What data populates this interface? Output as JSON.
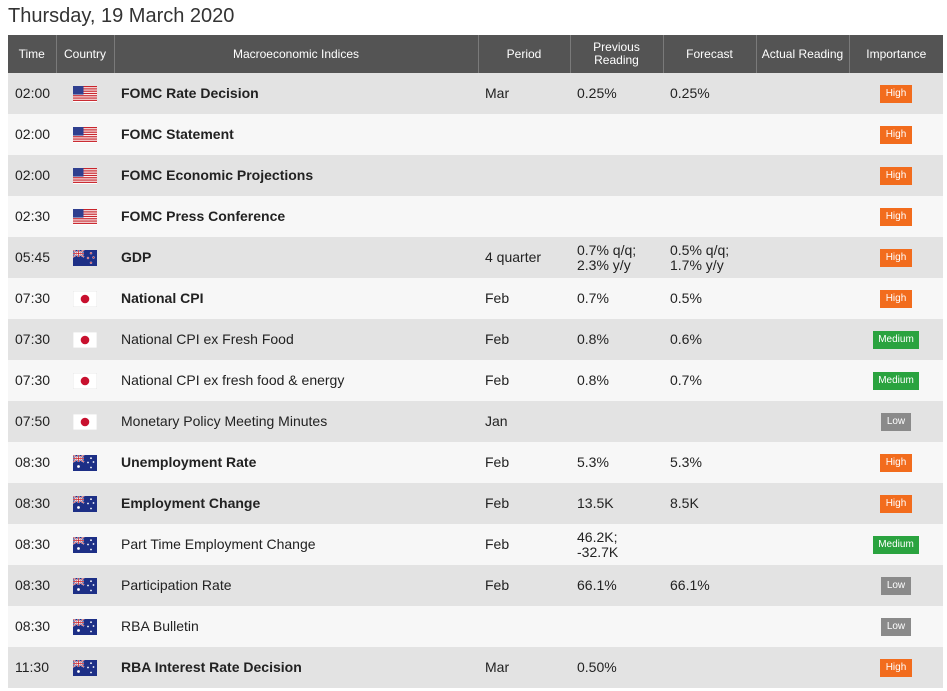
{
  "page": {
    "title": "Thursday, 19 March 2020"
  },
  "colors": {
    "header_bg": "#545454",
    "high": "#f26c1d",
    "medium": "#2aa33f",
    "low": "#8a8a8a"
  },
  "columns": {
    "time": "Time",
    "country": "Country",
    "indices": "Macroeconomic Indices",
    "period": "Period",
    "previous_1": "Previous",
    "previous_2": "Reading",
    "forecast": "Forecast",
    "actual": "Actual Reading",
    "importance": "Importance"
  },
  "rows": [
    {
      "time": "02:00",
      "flag": "us-flag-icon",
      "name": "FOMC Rate Decision",
      "bold": true,
      "period": "Mar",
      "previous": [
        "0.25%"
      ],
      "forecast": [
        "0.25%"
      ],
      "actual": "",
      "importance": "High"
    },
    {
      "time": "02:00",
      "flag": "us-flag-icon",
      "name": "FOMC Statement",
      "bold": true,
      "period": "",
      "previous": [],
      "forecast": [],
      "actual": "",
      "importance": "High"
    },
    {
      "time": "02:00",
      "flag": "us-flag-icon",
      "name": "FOMC Economic Projections",
      "bold": true,
      "period": "",
      "previous": [],
      "forecast": [],
      "actual": "",
      "importance": "High"
    },
    {
      "time": "02:30",
      "flag": "us-flag-icon",
      "name": "FOMC Press Conference",
      "bold": true,
      "period": "",
      "previous": [],
      "forecast": [],
      "actual": "",
      "importance": "High"
    },
    {
      "time": "05:45",
      "flag": "nz-flag-icon",
      "name": "GDP",
      "bold": true,
      "period": "4 quarter",
      "previous": [
        "0.7% q/q;",
        "2.3% y/y"
      ],
      "forecast": [
        "0.5% q/q;",
        "1.7% y/y"
      ],
      "actual": "",
      "importance": "High"
    },
    {
      "time": "07:30",
      "flag": "jp-flag-icon",
      "name": "National CPI",
      "bold": true,
      "period": "Feb",
      "previous": [
        "0.7%"
      ],
      "forecast": [
        "0.5%"
      ],
      "actual": "",
      "importance": "High"
    },
    {
      "time": "07:30",
      "flag": "jp-flag-icon",
      "name": "National CPI ex Fresh Food",
      "bold": false,
      "period": "Feb",
      "previous": [
        "0.8%"
      ],
      "forecast": [
        "0.6%"
      ],
      "actual": "",
      "importance": "Medium"
    },
    {
      "time": "07:30",
      "flag": "jp-flag-icon",
      "name": "National CPI ex fresh food & energy",
      "bold": false,
      "period": "Feb",
      "previous": [
        "0.8%"
      ],
      "forecast": [
        "0.7%"
      ],
      "actual": "",
      "importance": "Medium"
    },
    {
      "time": "07:50",
      "flag": "jp-flag-icon",
      "name": "Monetary Policy Meeting Minutes",
      "bold": false,
      "period": "Jan",
      "previous": [],
      "forecast": [],
      "actual": "",
      "importance": "Low"
    },
    {
      "time": "08:30",
      "flag": "au-flag-icon",
      "name": "Unemployment Rate",
      "bold": true,
      "period": "Feb",
      "previous": [
        "5.3%"
      ],
      "forecast": [
        "5.3%"
      ],
      "actual": "",
      "importance": "High"
    },
    {
      "time": "08:30",
      "flag": "au-flag-icon",
      "name": "Employment Change",
      "bold": true,
      "period": "Feb",
      "previous": [
        "13.5K"
      ],
      "forecast": [
        "8.5K"
      ],
      "actual": "",
      "importance": "High"
    },
    {
      "time": "08:30",
      "flag": "au-flag-icon",
      "name": "Part Time Employment Change",
      "bold": false,
      "period": "Feb",
      "previous": [
        "46.2K;",
        "-32.7K"
      ],
      "forecast": [],
      "actual": "",
      "importance": "Medium"
    },
    {
      "time": "08:30",
      "flag": "au-flag-icon",
      "name": "Participation Rate",
      "bold": false,
      "period": "Feb",
      "previous": [
        "66.1%"
      ],
      "forecast": [
        "66.1%"
      ],
      "actual": "",
      "importance": "Low"
    },
    {
      "time": "08:30",
      "flag": "au-flag-icon",
      "name": "RBA Bulletin",
      "bold": false,
      "period": "",
      "previous": [],
      "forecast": [],
      "actual": "",
      "importance": "Low"
    },
    {
      "time": "11:30",
      "flag": "au-flag-icon",
      "name": "RBA Interest Rate Decision",
      "bold": true,
      "period": "Mar",
      "previous": [
        "0.50%"
      ],
      "forecast": [],
      "actual": "",
      "importance": "High"
    }
  ]
}
